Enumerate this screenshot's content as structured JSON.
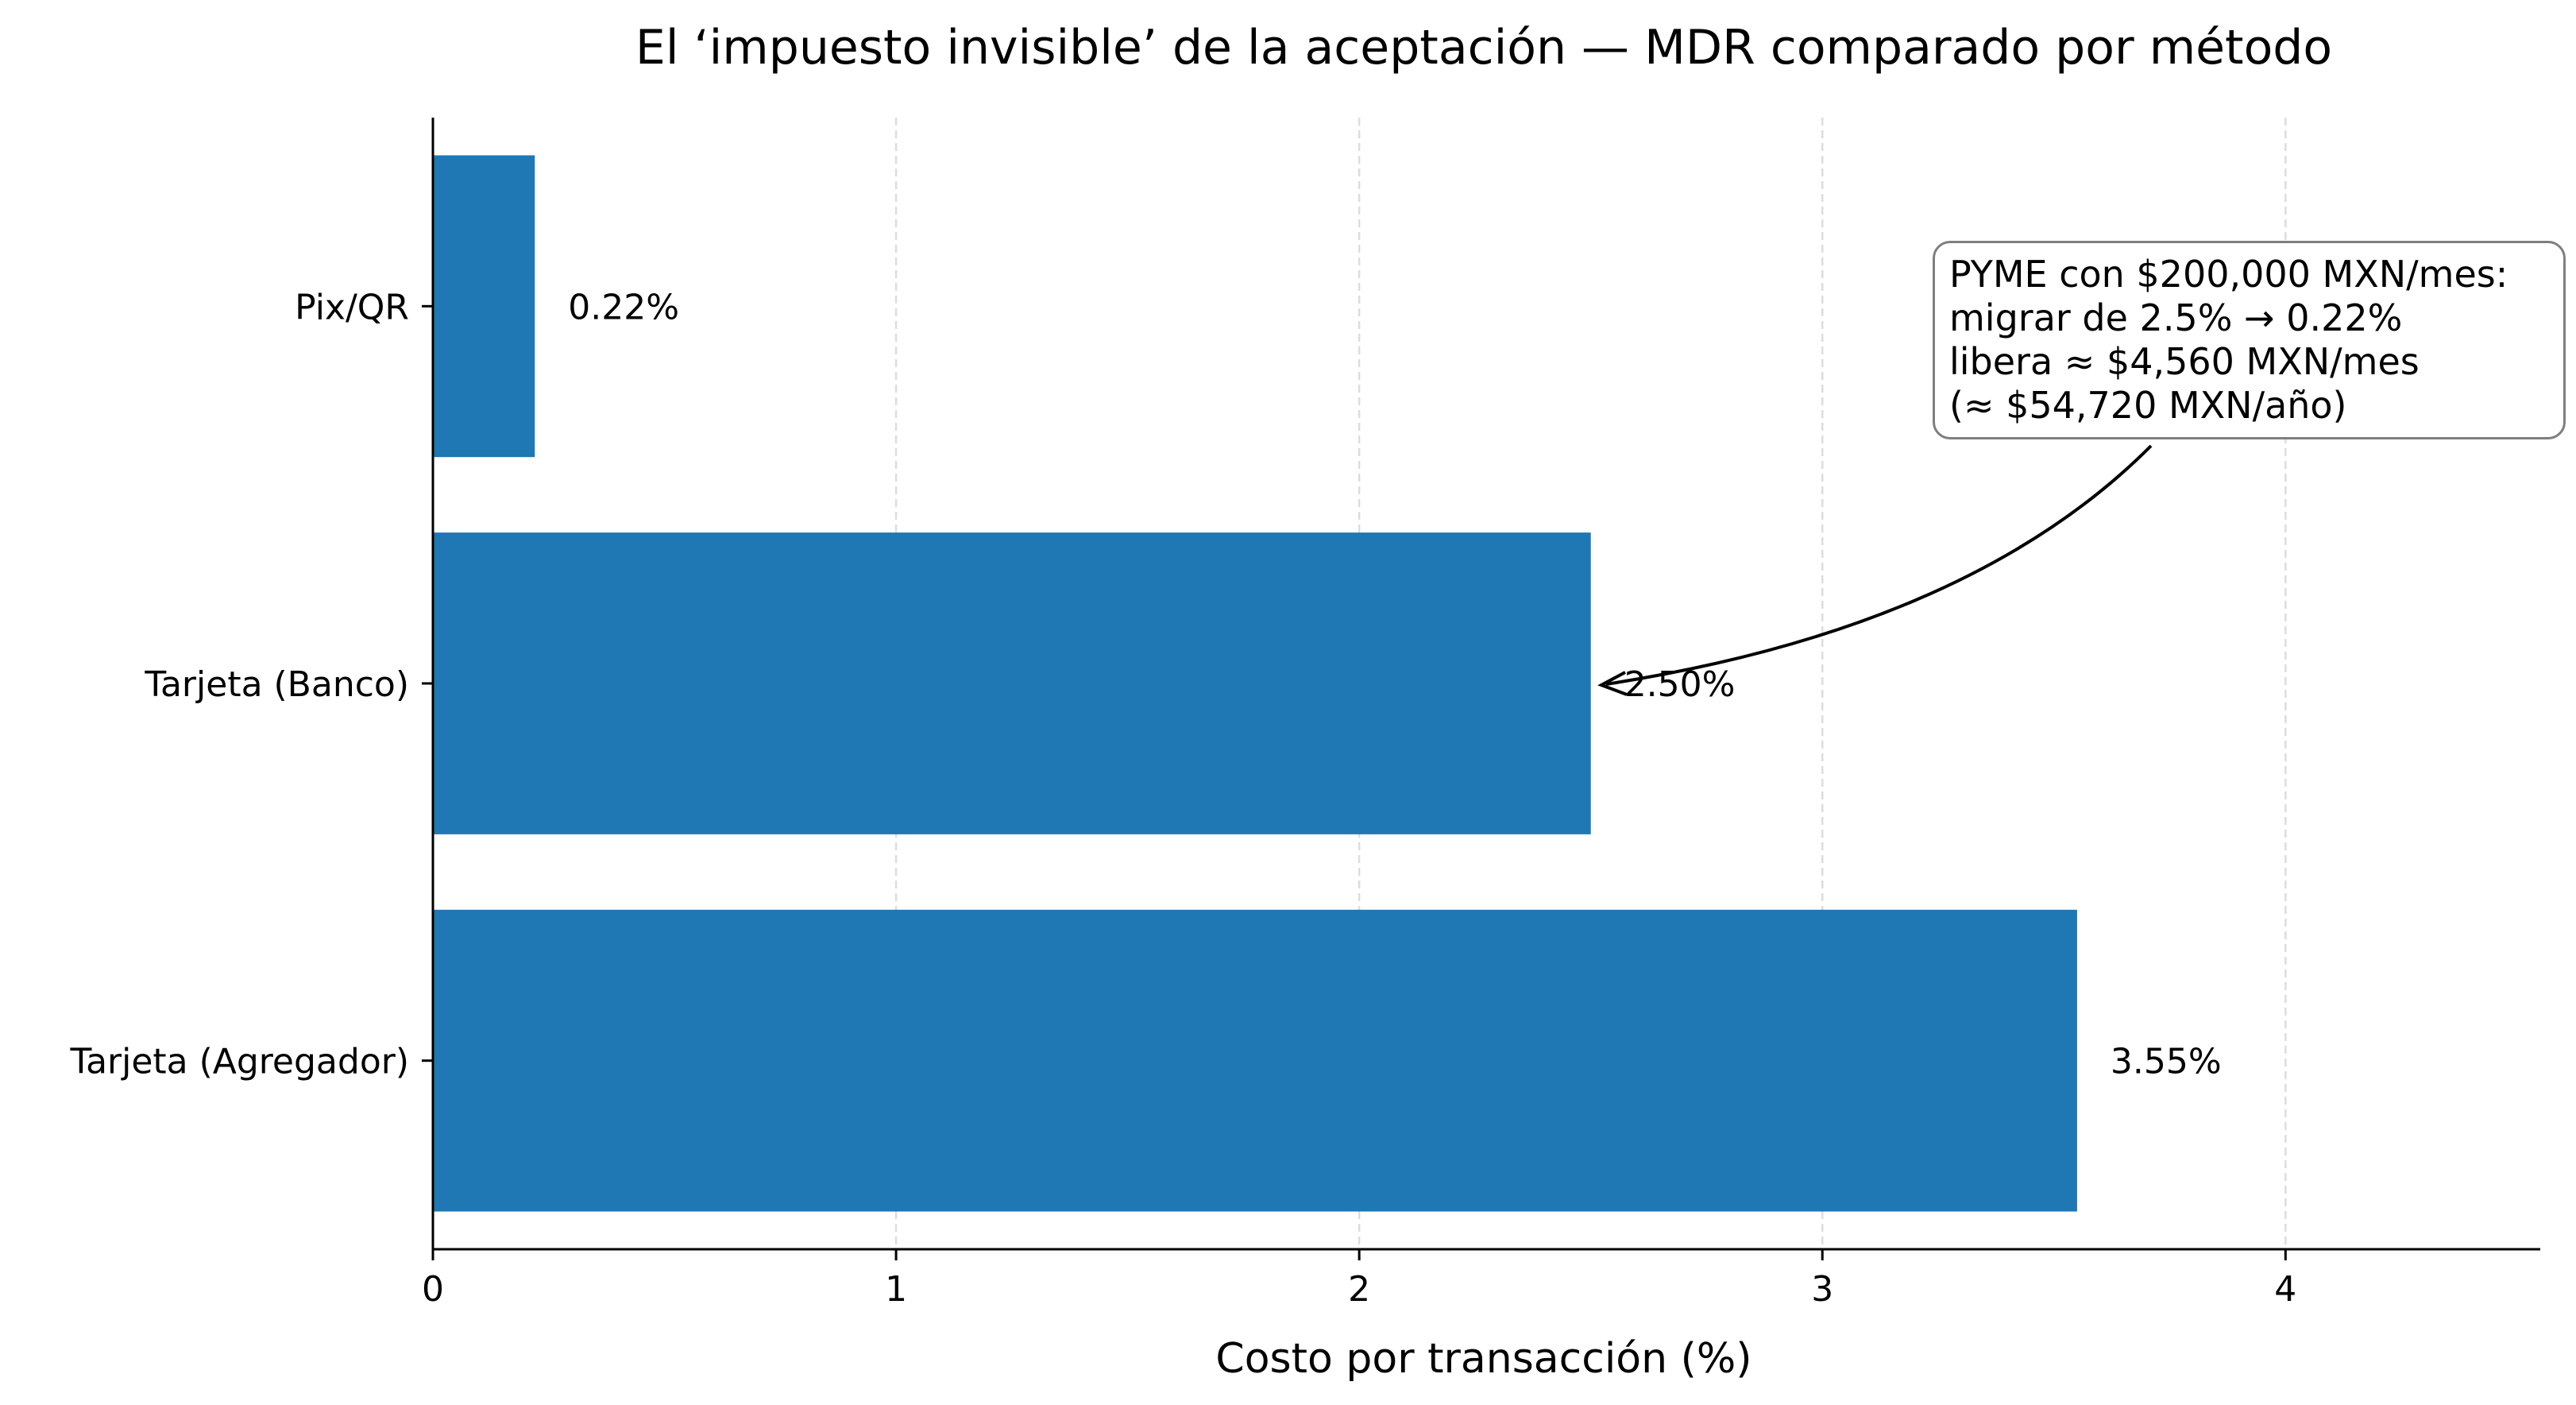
{
  "chart_data": {
    "type": "bar",
    "orientation": "horizontal",
    "title": "El ‘impuesto invisible’ de la aceptación — MDR comparado por método",
    "xlabel": "Costo por transacción (%)",
    "ylabel": "",
    "categories": [
      "Tarjeta (Agregador)",
      "Tarjeta (Banco)",
      "Pix/QR"
    ],
    "values": [
      3.55,
      2.5,
      0.22
    ],
    "value_labels": [
      "3.55%",
      "2.50%",
      "0.22%"
    ],
    "xlim": [
      0,
      4.55
    ],
    "xticks": [
      0,
      1,
      2,
      3,
      4
    ],
    "xtick_labels": [
      "0",
      "1",
      "2",
      "3",
      "4"
    ],
    "grid": "vertical, dashed",
    "legend": "none",
    "bar_color": "#1f77b4",
    "annotation": {
      "target_category": "Tarjeta (Banco)",
      "lines": [
        "PYME con $200,000 MXN/mes:",
        "migrar de 2.5% → 0.22%",
        "libera ≈ $4,560 MXN/mes",
        "(≈ $54,720 MXN/año)"
      ]
    }
  }
}
